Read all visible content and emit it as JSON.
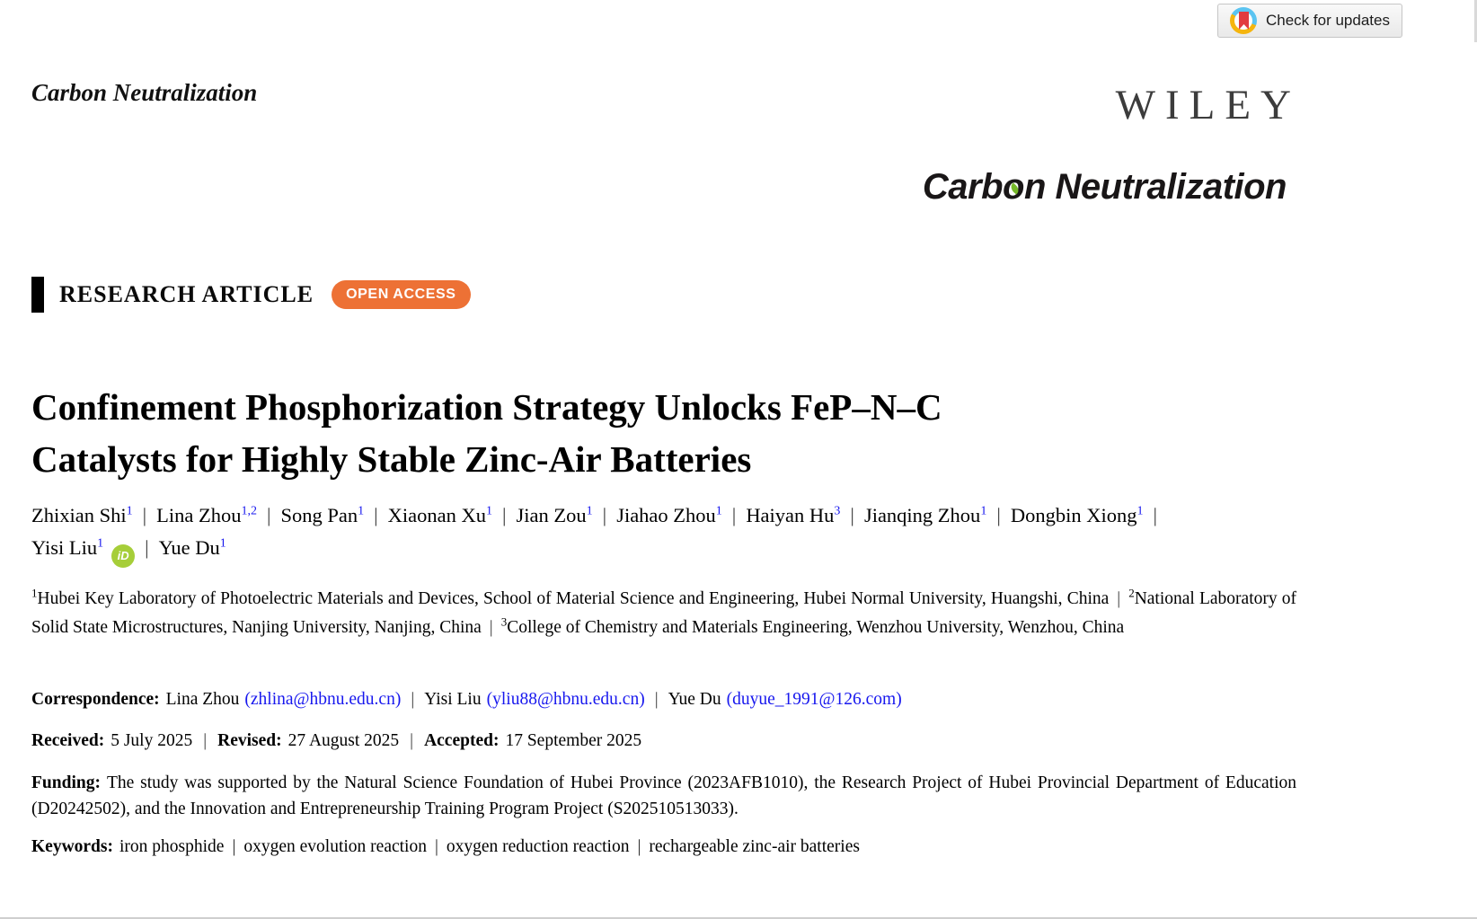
{
  "colors": {
    "accent_blue": "#1717EE",
    "open_access_orange": "#ED7135",
    "orcid_green": "#A6CE39",
    "leaf_green": "#76B82A",
    "crossmark_red": "#E23B3F",
    "crossmark_yellow": "#F5B50E",
    "crossmark_blue": "#5BC4F1"
  },
  "header": {
    "check_for_updates": "Check for updates",
    "journal_name_small": "Carbon Neutralization",
    "publisher_logo": "WILEY",
    "journal_logo": {
      "pre": "Carb",
      "o": "o",
      "post": "n Neutralization"
    }
  },
  "article_banner": {
    "type_label": "RESEARCH ARTICLE",
    "open_access_label": "OPEN ACCESS"
  },
  "title": {
    "line1": "Confinement Phosphorization Strategy Unlocks FeP–N–C",
    "line2": "Catalysts for Highly Stable Zinc-Air Batteries"
  },
  "authors": {
    "separator": "|",
    "orcid_icon_text": "iD",
    "items": [
      {
        "name": "Zhixian Shi",
        "sup": "1"
      },
      {
        "name": "Lina Zhou",
        "sup": "1,2"
      },
      {
        "name": "Song Pan",
        "sup": "1"
      },
      {
        "name": "Xiaonan Xu",
        "sup": "1"
      },
      {
        "name": "Jian Zou",
        "sup": "1"
      },
      {
        "name": "Jiahao Zhou",
        "sup": "1"
      },
      {
        "name": "Haiyan Hu",
        "sup": "3"
      },
      {
        "name": "Jianqing Zhou",
        "sup": "1"
      },
      {
        "name": "Dongbin Xiong",
        "sup": "1"
      },
      {
        "name": "Yisi Liu",
        "sup": "1"
      },
      {
        "name": "Yue Du",
        "sup": "1"
      }
    ]
  },
  "affiliations": {
    "separator": "|",
    "items": [
      {
        "sup": "1",
        "text": "Hubei Key Laboratory of Photoelectric Materials and Devices, School of Material Science and Engineering, Hubei Normal University, Huangshi, China"
      },
      {
        "sup": "2",
        "text": "National Laboratory of Solid State Microstructures, Nanjing University, Nanjing, China"
      },
      {
        "sup": "3",
        "text": "College of Chemistry and Materials Engineering, Wenzhou University, Wenzhou, China"
      }
    ]
  },
  "correspondence": {
    "label": "Correspondence:",
    "separator": "|",
    "items": [
      {
        "name": "Lina Zhou",
        "email_display": "(zhlina@hbnu.edu.cn)"
      },
      {
        "name": "Yisi Liu",
        "email_display": "(yliu88@hbnu.edu.cn)"
      },
      {
        "name": "Yue Du",
        "email_display": "(duyue_1991@126.com)"
      }
    ]
  },
  "dates": {
    "separator": "|",
    "items": [
      {
        "label": "Received:",
        "value": "5 July 2025"
      },
      {
        "label": "Revised:",
        "value": "27 August 2025"
      },
      {
        "label": "Accepted:",
        "value": "17 September 2025"
      }
    ]
  },
  "funding": {
    "label": "Funding:",
    "text": "The study was supported by the Natural Science Foundation of Hubei Province (2023AFB1010), the Research Project of Hubei Provincial Department of Education (D20242502), and the Innovation and Entrepreneurship Training Program Project (S202510513033)."
  },
  "keywords": {
    "label": "Keywords:",
    "separator": "|",
    "items": [
      "iron phosphide",
      "oxygen evolution reaction",
      "oxygen reduction reaction",
      "rechargeable zinc-air batteries"
    ]
  }
}
